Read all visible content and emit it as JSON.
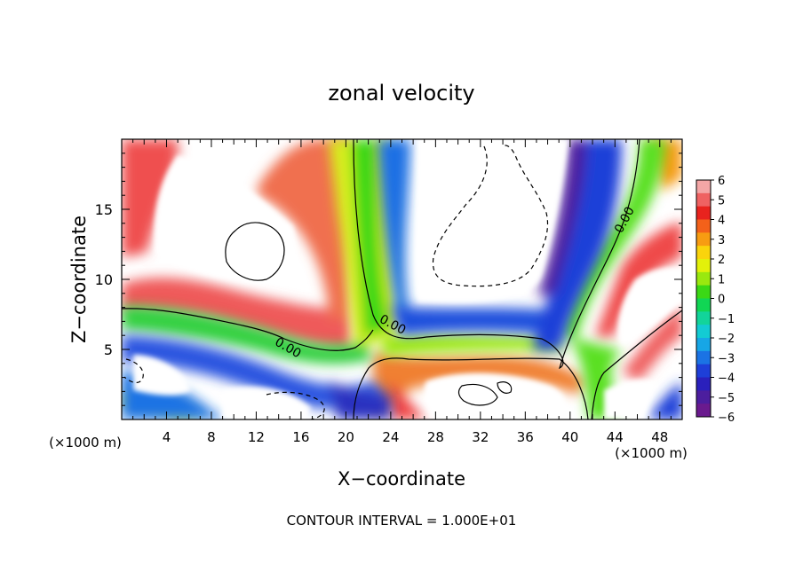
{
  "chart_data": {
    "type": "heatmap",
    "title": "zonal velocity",
    "xlabel": "X−coordinate",
    "ylabel": "Z−coordinate",
    "x_unit_left": "(×1000 m)",
    "x_unit_right": "(×1000 m)",
    "xlim": [
      0,
      50
    ],
    "ylim": [
      0,
      20
    ],
    "xticks": [
      4,
      8,
      12,
      16,
      20,
      24,
      28,
      32,
      36,
      40,
      44,
      48
    ],
    "xticklabels": [
      "4",
      "8",
      "12",
      "16",
      "20",
      "24",
      "28",
      "32",
      "36",
      "40",
      "44",
      "48"
    ],
    "yticks": [
      5,
      10,
      15
    ],
    "yticklabels": [
      "5",
      "10",
      "15"
    ],
    "colorbar": {
      "ticks": [
        "6",
        "5",
        "4",
        "3",
        "2",
        "1",
        "0",
        "−1",
        "−2",
        "−3",
        "−4",
        "−5",
        "−6"
      ],
      "range": [
        -6,
        6
      ],
      "colors": [
        "#f4a6a6",
        "#ef6262",
        "#e8231e",
        "#f3611a",
        "#f79c12",
        "#fad40c",
        "#e3f10a",
        "#9ae80f",
        "#3bd815",
        "#11d654",
        "#12d49a",
        "#13cbd3",
        "#17a6e6",
        "#1b73e4",
        "#1e3fd8",
        "#2a20bc",
        "#4c1e9e",
        "#6a1a8e"
      ]
    },
    "contour_labels": [
      "0.00",
      "0.00",
      "0.00"
    ],
    "contour_interval_text": "CONTOUR INTERVAL = 1.000E+01",
    "colors": {
      "positive_peak": "#e8231e",
      "zero": "#3bd815",
      "negative_peak": "#1e3fd8",
      "background": "#ffffff"
    }
  }
}
